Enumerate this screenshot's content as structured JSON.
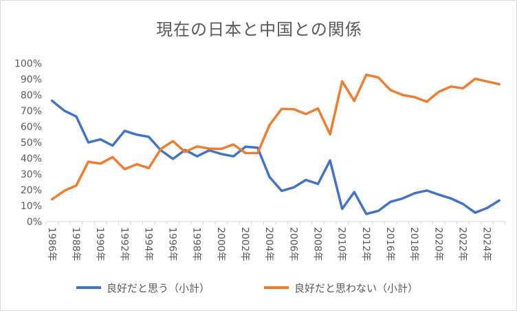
{
  "chart_data": {
    "type": "line",
    "title": "現在の日本と中国との関係",
    "xlabel": "",
    "ylabel": "",
    "ylim": [
      0,
      100
    ],
    "y_unit": "%",
    "y_ticks": [
      "0%",
      "10%",
      "20%",
      "30%",
      "40%",
      "50%",
      "60%",
      "70%",
      "80%",
      "90%",
      "100%"
    ],
    "grid": false,
    "legend_position": "bottom",
    "x_tick_labels": [
      "1986年",
      "1988年",
      "1990年",
      "1992年",
      "1994年",
      "1996年",
      "1998年",
      "2000年",
      "2002年",
      "2004年",
      "2006年",
      "2008年",
      "2010年",
      "2012年",
      "2016年",
      "2018年",
      "2020年",
      "2022年",
      "2024年"
    ],
    "x": [
      "1986",
      "1987",
      "1988",
      "1989",
      "1990",
      "1991",
      "1992",
      "1993",
      "1994",
      "1995",
      "1996",
      "1997",
      "1998",
      "1999",
      "2000",
      "2001",
      "2002",
      "2003",
      "2004",
      "2005",
      "2006",
      "2007",
      "2008",
      "2009",
      "2010",
      "2011",
      "2012",
      "2013",
      "2016",
      "2017",
      "2018",
      "2019",
      "2020",
      "2021",
      "2022",
      "2023",
      "2024",
      "2025"
    ],
    "series": [
      {
        "name": "良好だと思う（小計）",
        "color": "#4472c4",
        "values": [
          76.3,
          70.1,
          66.4,
          50.0,
          51.9,
          48.0,
          57.3,
          54.9,
          53.5,
          45.0,
          39.6,
          45.2,
          41.2,
          45.0,
          42.7,
          41.2,
          47.3,
          46.7,
          28.0,
          19.4,
          21.6,
          26.3,
          23.8,
          38.6,
          8.0,
          18.6,
          4.8,
          6.8,
          12.5,
          14.6,
          17.9,
          19.6,
          17.0,
          14.6,
          11.1,
          5.6,
          8.6,
          13.3
        ]
      },
      {
        "name": "良好だと思わない（小計）",
        "color": "#ed7d31",
        "values": [
          14.1,
          19.4,
          22.8,
          37.8,
          36.6,
          40.7,
          33.1,
          36.2,
          33.8,
          45.9,
          50.8,
          44.0,
          47.5,
          46.1,
          45.9,
          48.7,
          43.3,
          43.2,
          61.1,
          71.2,
          71.0,
          67.9,
          71.5,
          55.1,
          88.6,
          76.2,
          92.8,
          91.0,
          83.1,
          80.0,
          78.6,
          75.7,
          82.0,
          85.3,
          84.2,
          90.2,
          88.5,
          86.8
        ]
      }
    ]
  }
}
